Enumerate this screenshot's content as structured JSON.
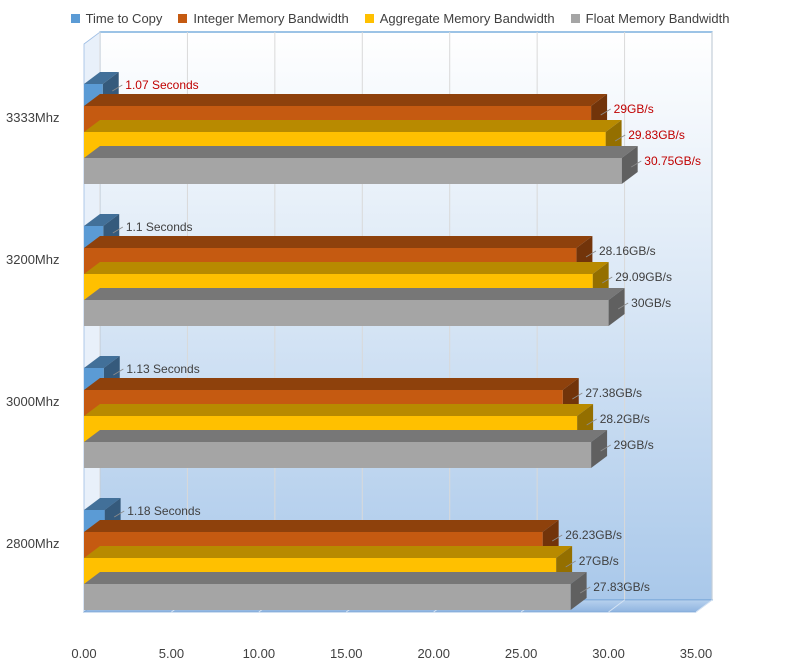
{
  "chart_data": {
    "type": "bar",
    "orientation": "horizontal",
    "three_d": true,
    "categories": [
      "3333Mhz",
      "3200Mhz",
      "3000Mhz",
      "2800Mhz"
    ],
    "series": [
      {
        "name": "Time to Copy",
        "color": "#5b9bd5",
        "values": [
          1.07,
          1.1,
          1.13,
          1.18
        ],
        "labels": [
          "1.07 Seconds",
          "1.1 Seconds",
          "1.13 Seconds",
          "1.18 Seconds"
        ]
      },
      {
        "name": "Integer Memory Bandwidth",
        "color": "#c55a11",
        "values": [
          29,
          28.16,
          27.38,
          26.23
        ],
        "labels": [
          "29GB/s",
          "28.16GB/s",
          "27.38GB/s",
          "26.23GB/s"
        ]
      },
      {
        "name": "Aggregate Memory Bandwidth",
        "color": "#ffc000",
        "values": [
          29.83,
          29.09,
          28.2,
          27
        ],
        "labels": [
          "29.83GB/s",
          "29.09GB/s",
          "28.2GB/s",
          "27GB/s"
        ]
      },
      {
        "name": "Float Memory Bandwidth",
        "color": "#a5a5a5",
        "values": [
          30.75,
          30,
          29,
          27.83
        ],
        "labels": [
          "30.75GB/s",
          "30GB/s",
          "29GB/s",
          "27.83GB/s"
        ]
      }
    ],
    "xlim": [
      0,
      35
    ],
    "xticks": [
      "0.00",
      "5.00",
      "10.00",
      "15.00",
      "20.00",
      "25.00",
      "30.00",
      "35.00"
    ],
    "highlight_category": "3333Mhz",
    "highlight_label_color": "#c00000",
    "label_color": "#404040",
    "legend_position": "top",
    "grid": true,
    "background": "gradient-blue"
  }
}
